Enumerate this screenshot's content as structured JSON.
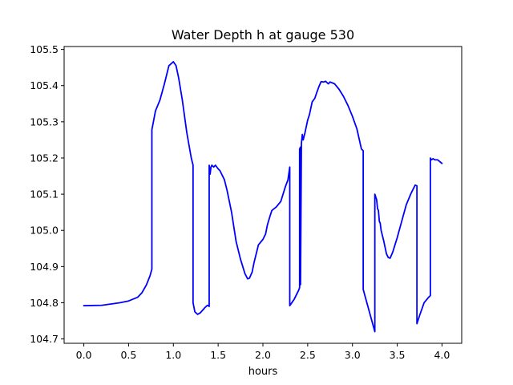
{
  "chart_data": {
    "type": "line",
    "title": "Water Depth h at gauge 530",
    "xlabel": "hours",
    "ylabel": "",
    "xlim": [
      -0.22,
      4.22
    ],
    "ylim": [
      104.688,
      105.508
    ],
    "xticks": [
      "0.0",
      "0.5",
      "1.0",
      "1.5",
      "2.0",
      "2.5",
      "3.0",
      "3.5",
      "4.0"
    ],
    "xtick_values": [
      0.0,
      0.5,
      1.0,
      1.5,
      2.0,
      2.5,
      3.0,
      3.5,
      4.0
    ],
    "yticks": [
      "104.7",
      "104.8",
      "104.9",
      "105.0",
      "105.1",
      "105.2",
      "105.3",
      "105.4",
      "105.5"
    ],
    "ytick_values": [
      104.7,
      104.8,
      104.9,
      105.0,
      105.1,
      105.2,
      105.3,
      105.4,
      105.5
    ],
    "grid": false,
    "series": [
      {
        "name": "",
        "color": "#0000ff",
        "x": [
          0.0,
          0.2,
          0.4,
          0.5,
          0.6,
          0.65,
          0.7,
          0.74,
          0.76,
          0.76,
          0.8,
          0.85,
          0.9,
          0.95,
          1.0,
          1.03,
          1.06,
          1.1,
          1.15,
          1.2,
          1.22,
          1.22,
          1.24,
          1.27,
          1.3,
          1.35,
          1.38,
          1.4,
          1.4,
          1.41,
          1.42,
          1.43,
          1.45,
          1.47,
          1.5,
          1.52,
          1.54,
          1.57,
          1.6,
          1.65,
          1.7,
          1.75,
          1.8,
          1.83,
          1.85,
          1.88,
          1.9,
          1.95,
          2.0,
          2.03,
          2.05,
          2.08,
          2.1,
          2.15,
          2.2,
          2.25,
          2.28,
          2.3,
          2.3,
          2.35,
          2.4,
          2.41,
          2.41,
          2.42,
          2.42,
          2.43,
          2.44,
          2.45,
          2.47,
          2.5,
          2.52,
          2.55,
          2.58,
          2.6,
          2.63,
          2.65,
          2.68,
          2.7,
          2.73,
          2.75,
          2.8,
          2.85,
          2.9,
          2.95,
          3.0,
          3.05,
          3.1,
          3.12,
          3.12,
          3.15,
          3.2,
          3.25,
          3.25,
          3.27,
          3.28,
          3.29,
          3.3,
          3.31,
          3.32,
          3.35,
          3.38,
          3.4,
          3.42,
          3.45,
          3.5,
          3.55,
          3.6,
          3.65,
          3.7,
          3.72,
          3.72,
          3.75,
          3.8,
          3.85,
          3.87,
          3.87,
          3.88,
          3.9,
          3.92,
          3.95,
          4.0
        ],
        "values": [
          104.792,
          104.793,
          104.8,
          104.805,
          104.815,
          104.828,
          104.85,
          104.875,
          104.893,
          105.278,
          105.33,
          105.36,
          105.405,
          105.455,
          105.466,
          105.455,
          105.42,
          105.36,
          105.27,
          105.2,
          105.18,
          104.8,
          104.775,
          104.768,
          104.772,
          104.786,
          104.793,
          104.79,
          105.18,
          105.155,
          105.175,
          105.18,
          105.175,
          105.18,
          105.17,
          105.165,
          105.155,
          105.14,
          105.11,
          105.05,
          104.97,
          104.92,
          104.88,
          104.866,
          104.868,
          104.885,
          104.91,
          104.96,
          104.975,
          104.99,
          105.015,
          105.04,
          105.055,
          105.065,
          105.08,
          105.12,
          105.14,
          105.175,
          104.792,
          104.81,
          104.835,
          104.842,
          105.225,
          105.23,
          104.85,
          105.24,
          105.265,
          105.25,
          105.27,
          105.305,
          105.32,
          105.355,
          105.365,
          105.38,
          105.4,
          105.411,
          105.41,
          105.412,
          105.405,
          105.41,
          105.405,
          105.39,
          105.37,
          105.345,
          105.315,
          105.28,
          105.225,
          105.22,
          104.837,
          104.81,
          104.765,
          104.72,
          105.1,
          105.085,
          105.06,
          105.055,
          105.025,
          105.02,
          105.0,
          104.97,
          104.935,
          104.925,
          104.923,
          104.94,
          104.98,
          105.025,
          105.07,
          105.1,
          105.125,
          105.123,
          104.742,
          104.765,
          104.8,
          104.815,
          104.82,
          105.2,
          105.195,
          105.198,
          105.195,
          105.195,
          105.185
        ]
      }
    ]
  }
}
